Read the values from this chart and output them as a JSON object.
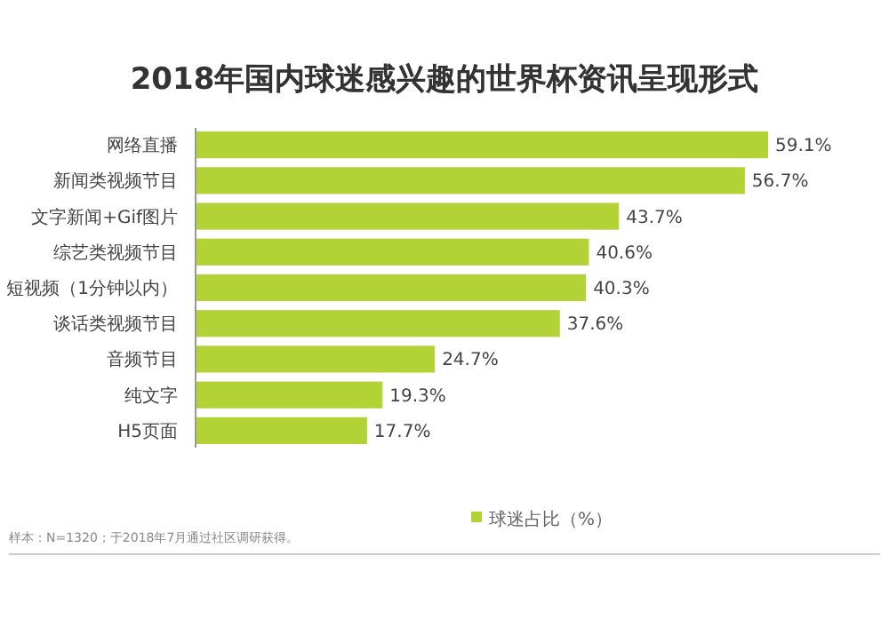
{
  "chart_data": {
    "type": "bar",
    "orientation": "horizontal",
    "title": "2018年国内球迷感兴趣的世界杯资讯呈现形式",
    "categories": [
      "网络直播",
      "新闻类视频节目",
      "文字新闻+Gif图片",
      "综艺类视频节目",
      "短视频（1分钟以内）",
      "谈话类视频节目",
      "音频节目",
      "纯文字",
      "H5页面"
    ],
    "series": [
      {
        "name": "球迷占比（%）",
        "color": "#b2d235",
        "values": [
          59.1,
          56.7,
          43.7,
          40.6,
          40.3,
          37.6,
          24.7,
          19.3,
          17.7
        ],
        "value_labels": [
          "59.1%",
          "56.7%",
          "43.7%",
          "40.6%",
          "40.3%",
          "37.6%",
          "24.7%",
          "19.3%",
          "17.7%"
        ]
      }
    ],
    "legend": "bottom",
    "grid": false,
    "annotations": [
      "样本：N=1320；于2018年7月通过社区调研获得。"
    ]
  }
}
